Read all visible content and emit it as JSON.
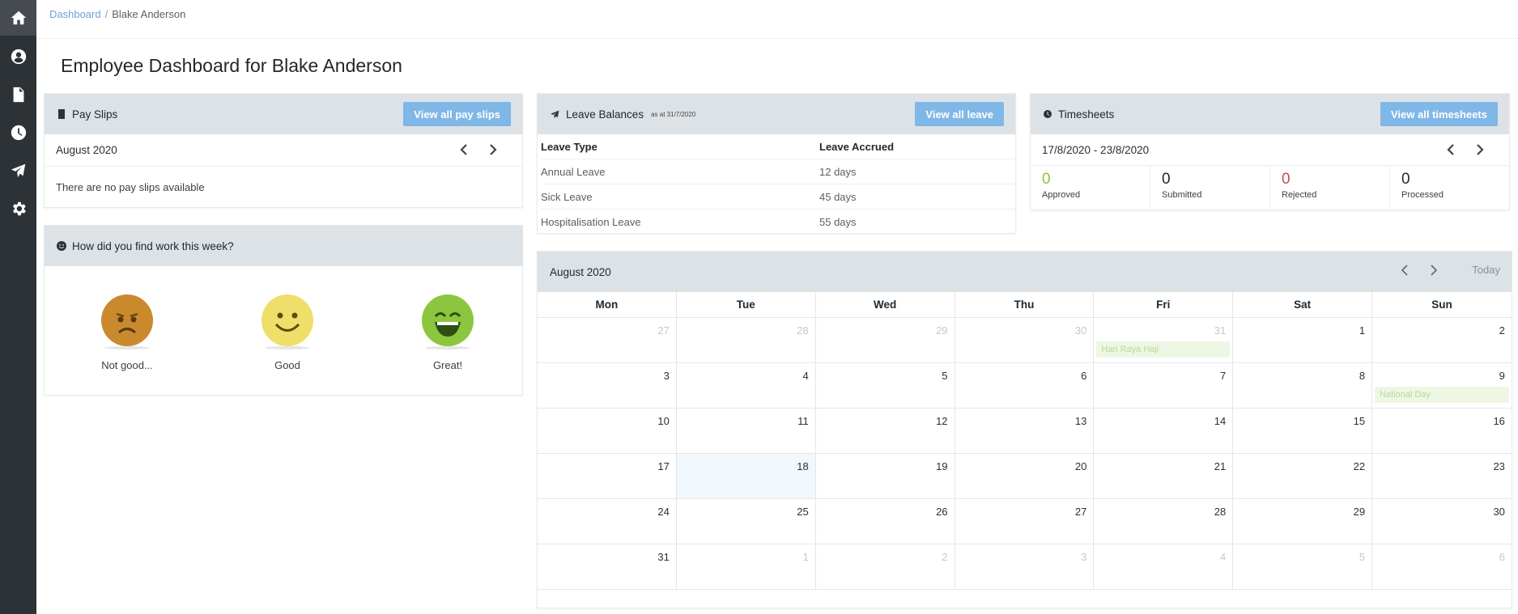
{
  "breadcrumb": {
    "root": "Dashboard",
    "separator": "/",
    "current": "Blake Anderson"
  },
  "page": {
    "title": "Employee Dashboard for Blake Anderson"
  },
  "sidebar": {
    "items": [
      "home-icon",
      "user-icon",
      "document-icon",
      "clock-icon",
      "plane-icon",
      "gear-icon"
    ],
    "active": "home-icon"
  },
  "payslips": {
    "title": "Pay Slips",
    "button": "View all pay slips",
    "period": "August 2020",
    "empty": "There are no pay slips available"
  },
  "mood": {
    "title": "How did you find work this week?",
    "options": [
      {
        "label": "Not good...",
        "color": "#c98a2e"
      },
      {
        "label": "Good",
        "color": "#f0de6a"
      },
      {
        "label": "Great!",
        "color": "#8cc63e"
      }
    ]
  },
  "leave": {
    "title": "Leave Balances",
    "asat": "as at 31/7/2020",
    "button": "View all leave",
    "headers": [
      "Leave Type",
      "Leave Accrued"
    ],
    "rows": [
      [
        "Annual Leave",
        "12 days"
      ],
      [
        "Sick Leave",
        "45 days"
      ],
      [
        "Hospitalisation Leave",
        "55 days"
      ]
    ]
  },
  "timesheets": {
    "title": "Timesheets",
    "button": "View all timesheets",
    "period": "17/8/2020 - 23/8/2020",
    "stats": [
      {
        "value": "0",
        "label": "Approved",
        "color": "#8cc63e"
      },
      {
        "value": "0",
        "label": "Submitted",
        "color": "#23282c"
      },
      {
        "value": "0",
        "label": "Rejected",
        "color": "#c0504d"
      },
      {
        "value": "0",
        "label": "Processed",
        "color": "#23282c"
      }
    ]
  },
  "calendar": {
    "title": "August 2020",
    "today_label": "Today",
    "days_of_week": [
      "Mon",
      "Tue",
      "Wed",
      "Thu",
      "Fri",
      "Sat",
      "Sun"
    ],
    "weeks": [
      [
        {
          "d": "27",
          "o": true
        },
        {
          "d": "28",
          "o": true
        },
        {
          "d": "29",
          "o": true
        },
        {
          "d": "30",
          "o": true
        },
        {
          "d": "31",
          "o": true,
          "e": "Hari Raya Haji"
        },
        {
          "d": "1"
        },
        {
          "d": "2"
        }
      ],
      [
        {
          "d": "3"
        },
        {
          "d": "4"
        },
        {
          "d": "5"
        },
        {
          "d": "6"
        },
        {
          "d": "7"
        },
        {
          "d": "8"
        },
        {
          "d": "9",
          "e": "National Day"
        }
      ],
      [
        {
          "d": "10"
        },
        {
          "d": "11"
        },
        {
          "d": "12"
        },
        {
          "d": "13"
        },
        {
          "d": "14"
        },
        {
          "d": "15"
        },
        {
          "d": "16"
        }
      ],
      [
        {
          "d": "17"
        },
        {
          "d": "18",
          "t": true
        },
        {
          "d": "19"
        },
        {
          "d": "20"
        },
        {
          "d": "21"
        },
        {
          "d": "22"
        },
        {
          "d": "23"
        }
      ],
      [
        {
          "d": "24"
        },
        {
          "d": "25"
        },
        {
          "d": "26"
        },
        {
          "d": "27"
        },
        {
          "d": "28"
        },
        {
          "d": "29"
        },
        {
          "d": "30"
        }
      ],
      [
        {
          "d": "31"
        },
        {
          "d": "1",
          "o": true
        },
        {
          "d": "2",
          "o": true
        },
        {
          "d": "3",
          "o": true
        },
        {
          "d": "4",
          "o": true
        },
        {
          "d": "5",
          "o": true
        },
        {
          "d": "6",
          "o": true
        }
      ]
    ]
  }
}
